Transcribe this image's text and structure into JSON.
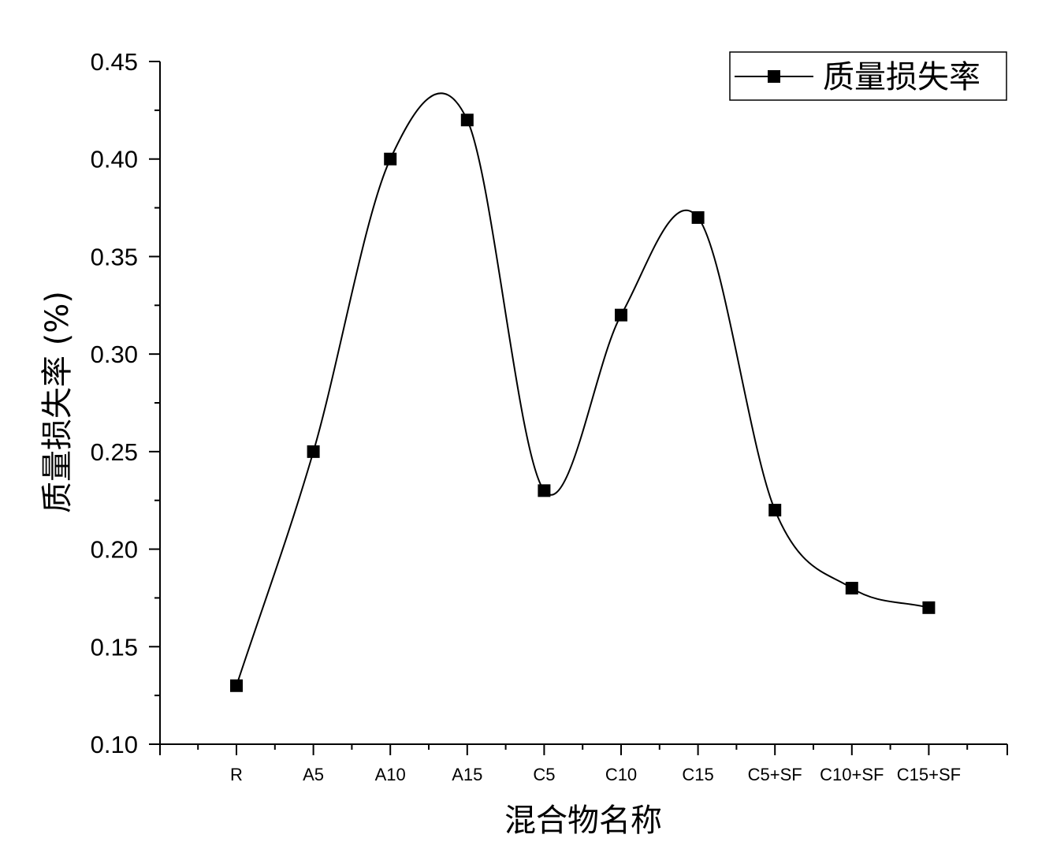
{
  "chart_data": {
    "type": "line",
    "categories": [
      "R",
      "A5",
      "A10",
      "A15",
      "C5",
      "C10",
      "C15",
      "C5+SF",
      "C10+SF",
      "C15+SF"
    ],
    "series": [
      {
        "name": "质量损失率",
        "values": [
          0.13,
          0.25,
          0.4,
          0.42,
          0.23,
          0.32,
          0.37,
          0.22,
          0.18,
          0.17
        ]
      }
    ],
    "xlabel": "混合物名称",
    "ylabel": "质量损失率 (%)",
    "ylim": [
      0.1,
      0.45
    ],
    "yticks": [
      "0.10",
      "0.15",
      "0.20",
      "0.25",
      "0.30",
      "0.35",
      "0.40",
      "0.45"
    ],
    "line_style": "spline",
    "marker": "square",
    "grid": false,
    "legend_position": "top-right",
    "colors": {
      "line": "#000000",
      "marker": "#000000",
      "axis": "#000000"
    }
  }
}
